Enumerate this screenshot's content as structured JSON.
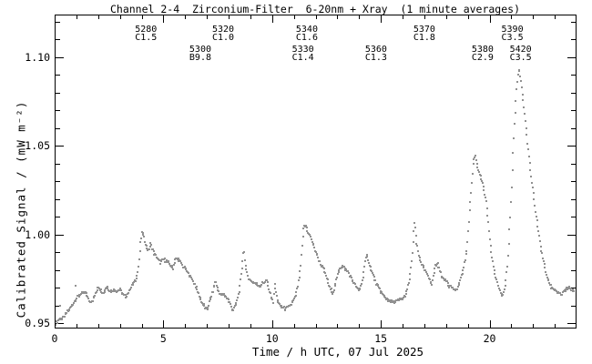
{
  "title": "Channel 2-4  Zirconium-Filter  6-20nm + Xray  (1 minute averages)",
  "chart_data": {
    "type": "scatter",
    "title": "Channel 2-4  Zirconium-Filter  6-20nm + Xray  (1 minute averages)",
    "xlabel": "Time / h UTC, 07 Jul 2025",
    "ylabel": "Calibrated Signal / (mW m⁻²)",
    "xlim": [
      0,
      24
    ],
    "ylim": [
      0.947,
      1.124
    ],
    "grid": false,
    "legend": "none",
    "xticks_major": [
      0,
      5,
      10,
      15,
      20
    ],
    "xtick_labels": [
      "0",
      "5",
      "10",
      "15",
      "20"
    ],
    "xtick_minor_step": 1,
    "yticks_major": [
      0.95,
      1.0,
      1.05,
      1.1
    ],
    "ytick_labels": [
      "0.95",
      "1.00",
      "1.05",
      "1.10"
    ],
    "ytick_minor_step": 0.01,
    "point_color": "#919191",
    "axis_color": "#000000",
    "sample_step_hours": 0.03333,
    "noise_amplitude": 0.0016,
    "series": [
      {
        "name": "calibrated-signal-1min-avg",
        "keypoints": [
          [
            0.05,
            0.95
          ],
          [
            0.2,
            0.952
          ],
          [
            0.4,
            0.953
          ],
          [
            0.55,
            0.956
          ],
          [
            0.7,
            0.958
          ],
          [
            0.85,
            0.961
          ],
          [
            1.0,
            0.964
          ],
          [
            1.15,
            0.966
          ],
          [
            1.3,
            0.967
          ],
          [
            1.45,
            0.967
          ],
          [
            1.6,
            0.962
          ],
          [
            1.75,
            0.963
          ],
          [
            1.9,
            0.967
          ],
          [
            2.0,
            0.971
          ],
          [
            2.1,
            0.969
          ],
          [
            2.25,
            0.967
          ],
          [
            2.4,
            0.971
          ],
          [
            2.55,
            0.968
          ],
          [
            2.7,
            0.969
          ],
          [
            2.85,
            0.968
          ],
          [
            3.0,
            0.969
          ],
          [
            3.15,
            0.966
          ],
          [
            3.3,
            0.965
          ],
          [
            3.45,
            0.969
          ],
          [
            3.6,
            0.972
          ],
          [
            3.75,
            0.975
          ],
          [
            3.85,
            0.982
          ],
          [
            3.95,
            0.995
          ],
          [
            4.03,
            1.002
          ],
          [
            4.12,
            0.998
          ],
          [
            4.22,
            0.993
          ],
          [
            4.32,
            0.991
          ],
          [
            4.42,
            0.995
          ],
          [
            4.55,
            0.99
          ],
          [
            4.7,
            0.987
          ],
          [
            4.85,
            0.984
          ],
          [
            5.0,
            0.986
          ],
          [
            5.15,
            0.985
          ],
          [
            5.3,
            0.983
          ],
          [
            5.45,
            0.981
          ],
          [
            5.55,
            0.986
          ],
          [
            5.7,
            0.986
          ],
          [
            5.85,
            0.983
          ],
          [
            6.0,
            0.981
          ],
          [
            6.15,
            0.978
          ],
          [
            6.3,
            0.975
          ],
          [
            6.45,
            0.972
          ],
          [
            6.6,
            0.967
          ],
          [
            6.8,
            0.961
          ],
          [
            7.0,
            0.957
          ],
          [
            7.15,
            0.963
          ],
          [
            7.3,
            0.969
          ],
          [
            7.4,
            0.974
          ],
          [
            7.5,
            0.969
          ],
          [
            7.65,
            0.966
          ],
          [
            7.8,
            0.966
          ],
          [
            7.95,
            0.964
          ],
          [
            8.1,
            0.96
          ],
          [
            8.2,
            0.957
          ],
          [
            8.35,
            0.961
          ],
          [
            8.5,
            0.969
          ],
          [
            8.6,
            0.979
          ],
          [
            8.7,
            0.992
          ],
          [
            8.8,
            0.98
          ],
          [
            8.9,
            0.976
          ],
          [
            9.0,
            0.974
          ],
          [
            9.15,
            0.973
          ],
          [
            9.3,
            0.972
          ],
          [
            9.45,
            0.971
          ],
          [
            9.6,
            0.973
          ],
          [
            9.75,
            0.974
          ],
          [
            9.85,
            0.969
          ],
          [
            9.95,
            0.965
          ],
          [
            10.05,
            0.962
          ],
          [
            10.12,
            0.972
          ],
          [
            10.2,
            0.966
          ],
          [
            10.3,
            0.961
          ],
          [
            10.45,
            0.959
          ],
          [
            10.6,
            0.958
          ],
          [
            10.75,
            0.959
          ],
          [
            10.9,
            0.961
          ],
          [
            11.0,
            0.963
          ],
          [
            11.1,
            0.966
          ],
          [
            11.2,
            0.972
          ],
          [
            11.3,
            0.98
          ],
          [
            11.38,
            0.993
          ],
          [
            11.45,
            1.004
          ],
          [
            11.55,
            1.005
          ],
          [
            11.65,
            1.001
          ],
          [
            11.8,
            0.998
          ],
          [
            11.9,
            0.994
          ],
          [
            12.05,
            0.989
          ],
          [
            12.2,
            0.984
          ],
          [
            12.35,
            0.981
          ],
          [
            12.5,
            0.976
          ],
          [
            12.65,
            0.97
          ],
          [
            12.8,
            0.967
          ],
          [
            12.95,
            0.974
          ],
          [
            13.1,
            0.981
          ],
          [
            13.25,
            0.982
          ],
          [
            13.4,
            0.98
          ],
          [
            13.55,
            0.978
          ],
          [
            13.7,
            0.974
          ],
          [
            13.85,
            0.971
          ],
          [
            14.0,
            0.968
          ],
          [
            14.15,
            0.974
          ],
          [
            14.3,
            0.986
          ],
          [
            14.38,
            0.988
          ],
          [
            14.5,
            0.982
          ],
          [
            14.65,
            0.977
          ],
          [
            14.8,
            0.972
          ],
          [
            14.95,
            0.969
          ],
          [
            15.1,
            0.966
          ],
          [
            15.25,
            0.964
          ],
          [
            15.45,
            0.962
          ],
          [
            15.65,
            0.962
          ],
          [
            15.85,
            0.963
          ],
          [
            16.05,
            0.964
          ],
          [
            16.2,
            0.968
          ],
          [
            16.35,
            0.977
          ],
          [
            16.45,
            0.99
          ],
          [
            16.55,
            1.007
          ],
          [
            16.65,
            0.995
          ],
          [
            16.75,
            0.988
          ],
          [
            16.9,
            0.983
          ],
          [
            17.05,
            0.979
          ],
          [
            17.2,
            0.976
          ],
          [
            17.35,
            0.972
          ],
          [
            17.5,
            0.982
          ],
          [
            17.6,
            0.984
          ],
          [
            17.75,
            0.978
          ],
          [
            17.9,
            0.974
          ],
          [
            18.0,
            0.975
          ],
          [
            18.15,
            0.971
          ],
          [
            18.3,
            0.97
          ],
          [
            18.45,
            0.968
          ],
          [
            18.6,
            0.972
          ],
          [
            18.75,
            0.978
          ],
          [
            18.85,
            0.984
          ],
          [
            18.95,
            0.991
          ],
          [
            19.05,
            1.008
          ],
          [
            19.15,
            1.024
          ],
          [
            19.25,
            1.04
          ],
          [
            19.33,
            1.045
          ],
          [
            19.45,
            1.038
          ],
          [
            19.6,
            1.032
          ],
          [
            19.75,
            1.025
          ],
          [
            19.85,
            1.018
          ],
          [
            19.95,
            1.006
          ],
          [
            20.05,
            0.993
          ],
          [
            20.15,
            0.984
          ],
          [
            20.3,
            0.975
          ],
          [
            20.45,
            0.969
          ],
          [
            20.6,
            0.965
          ],
          [
            20.72,
            0.972
          ],
          [
            20.82,
            0.983
          ],
          [
            20.9,
            0.999
          ],
          [
            21.0,
            1.022
          ],
          [
            21.08,
            1.045
          ],
          [
            21.15,
            1.062
          ],
          [
            21.22,
            1.077
          ],
          [
            21.3,
            1.09
          ],
          [
            21.38,
            1.093
          ],
          [
            21.48,
            1.083
          ],
          [
            21.58,
            1.072
          ],
          [
            21.68,
            1.06
          ],
          [
            21.78,
            1.048
          ],
          [
            21.88,
            1.036
          ],
          [
            21.98,
            1.026
          ],
          [
            22.08,
            1.016
          ],
          [
            22.18,
            1.008
          ],
          [
            22.28,
            0.999
          ],
          [
            22.38,
            0.991
          ],
          [
            22.48,
            0.985
          ],
          [
            22.58,
            0.979
          ],
          [
            22.7,
            0.974
          ],
          [
            22.85,
            0.97
          ],
          [
            23.0,
            0.969
          ],
          [
            23.15,
            0.967
          ],
          [
            23.3,
            0.966
          ],
          [
            23.45,
            0.968
          ],
          [
            23.6,
            0.97
          ],
          [
            23.75,
            0.969
          ],
          [
            23.9,
            0.968
          ]
        ]
      }
    ],
    "outliers": [
      [
        0.25,
        0.96
      ],
      [
        0.95,
        0.971
      ]
    ],
    "flare_labels": [
      {
        "noaa": "5280",
        "goes_class": "C1.5",
        "time_h": 4.2,
        "row": 1
      },
      {
        "noaa": "5320",
        "goes_class": "C1.0",
        "time_h": 7.75,
        "row": 1
      },
      {
        "noaa": "5300",
        "goes_class": "B9.8",
        "time_h": 6.7,
        "row": 2
      },
      {
        "noaa": "5340",
        "goes_class": "C1.6",
        "time_h": 11.6,
        "row": 1
      },
      {
        "noaa": "5330",
        "goes_class": "C1.4",
        "time_h": 11.42,
        "row": 2
      },
      {
        "noaa": "5360",
        "goes_class": "C1.3",
        "time_h": 14.78,
        "row": 2
      },
      {
        "noaa": "5370",
        "goes_class": "C1.8",
        "time_h": 17.0,
        "row": 1
      },
      {
        "noaa": "5390",
        "goes_class": "C3.5",
        "time_h": 21.05,
        "row": 1
      },
      {
        "noaa": "5380",
        "goes_class": "C2.9",
        "time_h": 19.68,
        "row": 2
      },
      {
        "noaa": "5420",
        "goes_class": "C3.5",
        "time_h": 21.43,
        "row": 2
      }
    ]
  }
}
